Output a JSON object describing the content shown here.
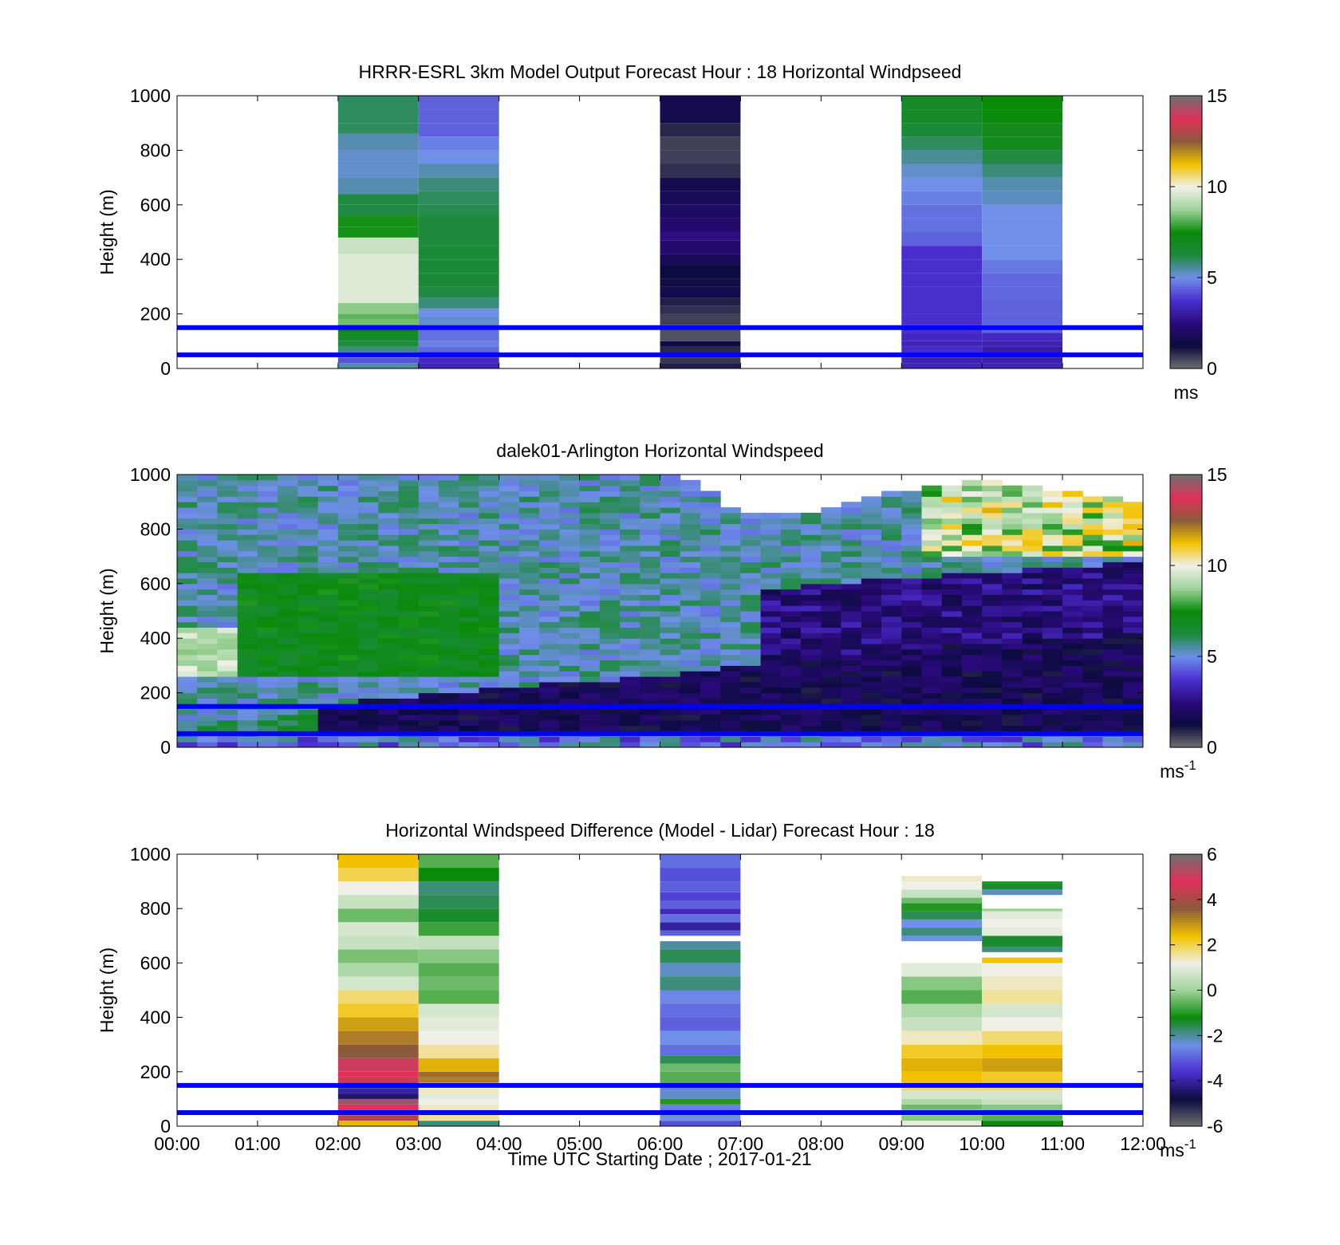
{
  "figure": {
    "xlabel": "Time UTC  Starting Date ; 2017-01-21",
    "x_tick_labels": [
      "00:00",
      "01:00",
      "02:00",
      "03:00",
      "04:00",
      "05:00",
      "06:00",
      "07:00",
      "08:00",
      "09:00",
      "10:00",
      "11:00",
      "12:00"
    ],
    "y_tick_labels": [
      "0",
      "200",
      "400",
      "600",
      "800",
      "1000"
    ],
    "ylabel": "Height (m)",
    "colors": {
      "reference_lines": "#0000ff",
      "windspeed_colormap": [
        "#707070",
        "#0b0b3e",
        "#2a0a7a",
        "#4a2fd0",
        "#6f8fe8",
        "#1d8a3c",
        "#0a8a0a",
        "#9fd39a",
        "#f0f0e8",
        "#f2c200",
        "#8a5a3a",
        "#e0305a",
        "#707070"
      ],
      "difference_colormap": [
        "#707070",
        "#0b0b3e",
        "#4a2fd0",
        "#6f8fe8",
        "#0a8a0a",
        "#9fd39a",
        "#f0f0e8",
        "#f2c200",
        "#8a5a3a",
        "#e0305a",
        "#707070"
      ]
    }
  },
  "chart_data": [
    {
      "type": "heatmap",
      "title": "HRRR-ESRL 3km Model Output   Forecast Hour : 18 Horizontal Windpseed",
      "xlabel": "",
      "ylabel": "Height (m)",
      "xlim": [
        0,
        12
      ],
      "ylim": [
        0,
        1000
      ],
      "colorbar": {
        "range": [
          0,
          15
        ],
        "tick_labels": [
          "0",
          "5",
          "10",
          "15"
        ],
        "unit": "ms",
        "unit_sup": ""
      },
      "reference_heights": [
        50,
        150
      ],
      "columns": [
        {
          "t0": 2,
          "t1": 3,
          "heights": [
            20,
            40,
            60,
            80,
            100,
            130,
            160,
            180,
            200,
            240,
            270,
            300,
            350,
            420,
            480,
            520,
            560,
            600,
            640,
            700,
            760,
            800,
            860,
            900,
            1000
          ],
          "values": [
            5.5,
            4.2,
            5.0,
            5.8,
            6.3,
            6.6,
            7.4,
            8.4,
            8.2,
            8.6,
            9.7,
            9.7,
            9.7,
            9.7,
            9.4,
            7.6,
            7.6,
            6.2,
            6.2,
            5.4,
            5.2,
            5.2,
            5.4,
            6.0,
            6.0
          ]
        },
        {
          "t0": 3,
          "t1": 4,
          "heights": [
            20,
            40,
            60,
            80,
            100,
            130,
            160,
            190,
            220,
            260,
            300,
            350,
            400,
            450,
            500,
            560,
            600,
            650,
            700,
            750,
            800,
            850,
            900,
            950,
            1000
          ],
          "values": [
            3.4,
            3.5,
            3.8,
            4.5,
            4.8,
            4.6,
            4.6,
            5.2,
            5.0,
            5.8,
            6.2,
            6.4,
            6.4,
            6.4,
            6.3,
            6.3,
            6.1,
            6.0,
            5.8,
            5.4,
            5.0,
            4.8,
            4.4,
            4.4,
            4.4
          ]
        },
        {
          "t0": 6,
          "t1": 7,
          "heights": [
            20,
            40,
            60,
            80,
            100,
            130,
            160,
            200,
            230,
            260,
            300,
            330,
            380,
            420,
            470,
            500,
            550,
            600,
            650,
            700,
            750,
            800,
            850,
            900,
            1000
          ],
          "values": [
            1.0,
            0.7,
            0.8,
            0.9,
            1.4,
            0.4,
            0.4,
            0.6,
            0.8,
            1.0,
            1.6,
            1.2,
            1.3,
            1.8,
            2.2,
            2.6,
            2.2,
            2.0,
            1.8,
            1.6,
            0.8,
            0.6,
            0.6,
            0.9,
            1.6
          ]
        },
        {
          "t0": 9,
          "t1": 10,
          "heights": [
            20,
            40,
            60,
            80,
            100,
            130,
            160,
            200,
            250,
            300,
            350,
            400,
            450,
            500,
            550,
            600,
            650,
            700,
            750,
            800,
            850,
            900,
            950,
            1000
          ],
          "values": [
            3.4,
            3.3,
            3.4,
            3.6,
            3.4,
            3.5,
            3.7,
            3.7,
            3.7,
            3.7,
            3.7,
            3.7,
            3.7,
            4.4,
            4.6,
            4.6,
            4.8,
            5.0,
            5.2,
            5.6,
            6.0,
            6.4,
            6.8,
            6.8
          ]
        },
        {
          "t0": 10,
          "t1": 11,
          "heights": [
            20,
            40,
            60,
            80,
            100,
            130,
            160,
            200,
            250,
            300,
            350,
            400,
            450,
            500,
            550,
            600,
            650,
            700,
            750,
            800,
            850,
            900,
            950,
            1000
          ],
          "values": [
            3.4,
            3.2,
            3.0,
            3.1,
            3.3,
            3.5,
            4.4,
            4.4,
            4.4,
            4.5,
            4.5,
            4.7,
            5.0,
            5.0,
            5.0,
            5.0,
            5.3,
            5.4,
            5.8,
            6.2,
            7.0,
            7.0,
            7.5,
            7.5
          ]
        }
      ]
    },
    {
      "type": "heatmap",
      "title": "dalek01-Arlington  Horizontal Windspeed",
      "xlabel": "",
      "ylabel": "Height (m)",
      "xlim": [
        0,
        12
      ],
      "ylim": [
        0,
        1000
      ],
      "colorbar": {
        "range": [
          0,
          15
        ],
        "tick_labels": [
          "0",
          "5",
          "10",
          "15"
        ],
        "unit": "ms",
        "unit_sup": "-1"
      },
      "reference_heights": [
        50,
        150
      ],
      "time_step_hours": 0.25,
      "height_step_m": 20,
      "time_range": [
        0,
        12
      ],
      "max_height_by_hour": {
        "hours": [
          0,
          2,
          4,
          5,
          6,
          6.5,
          7,
          8,
          9,
          10,
          11,
          12
        ],
        "heights": [
          1000,
          1000,
          1000,
          1000,
          1000,
          960,
          860,
          860,
          940,
          980,
          940,
          900
        ]
      },
      "jet_height_by_hour": {
        "hours": [
          0,
          1,
          2,
          3,
          4,
          5,
          6,
          7,
          8,
          9,
          10,
          11,
          12
        ],
        "heights": [
          60,
          60,
          120,
          150,
          180,
          200,
          220,
          260,
          300,
          320,
          340,
          360,
          380
        ]
      }
    },
    {
      "type": "heatmap",
      "title": "Horizontal Windspeed Difference (Model - Lidar) Forecast Hour : 18",
      "xlabel": "Time UTC  Starting Date ; 2017-01-21",
      "ylabel": "Height (m)",
      "xlim": [
        0,
        12
      ],
      "ylim": [
        0,
        1000
      ],
      "colorbar": {
        "range": [
          -6,
          6
        ],
        "tick_labels": [
          "-6",
          "-4",
          "-2",
          "0",
          "2",
          "4",
          "6"
        ],
        "unit": "ms",
        "unit_sup": "-1"
      },
      "reference_heights": [
        50,
        150
      ],
      "columns": [
        {
          "t0": 2,
          "t1": 3,
          "heights": [
            20,
            40,
            60,
            80,
            100,
            120,
            140,
            160,
            180,
            200,
            250,
            300,
            350,
            400,
            450,
            500,
            550,
            600,
            650,
            700,
            750,
            800,
            850,
            900,
            950,
            1000
          ],
          "values": [
            2.5,
            4.2,
            5.2,
            4.8,
            5.5,
            -4.4,
            -4.0,
            -5.6,
            4.5,
            4.8,
            5.0,
            3.6,
            3.2,
            2.8,
            2.2,
            1.8,
            0.8,
            0.2,
            -0.3,
            0.6,
            0.8,
            -0.4,
            0.6,
            1.2,
            2.0,
            2.4
          ]
        },
        {
          "t0": 3,
          "t1": 4,
          "heights": [
            20,
            40,
            60,
            80,
            100,
            120,
            140,
            160,
            180,
            200,
            250,
            300,
            350,
            400,
            450,
            500,
            550,
            600,
            650,
            700,
            750,
            800,
            850,
            900,
            950,
            1000
          ],
          "values": [
            -1.8,
            1.6,
            2.0,
            1.4,
            1.2,
            1.0,
            1.4,
            1.2,
            3.2,
            3.4,
            2.6,
            1.6,
            1.2,
            1.0,
            0.8,
            -0.6,
            -0.4,
            -0.6,
            -0.2,
            0.5,
            -0.8,
            -1.4,
            -1.6,
            -1.8,
            -1.2,
            -0.6
          ]
        },
        {
          "t0": 6,
          "t1": 7,
          "heights": [
            20,
            40,
            60,
            80,
            100,
            130,
            160,
            200,
            230,
            260,
            300,
            350,
            400,
            450,
            500,
            550,
            600,
            650,
            680
          ],
          "values": [
            -3.2,
            -2.4,
            -1.4,
            -2.6,
            -1.0,
            -2.2,
            -2.6,
            -0.6,
            -0.4,
            -1.6,
            -2.8,
            -2.4,
            -3.0,
            -2.8,
            -2.5,
            -1.8,
            -2.2,
            -1.6,
            -2.0
          ]
        },
        {
          "t0": 6,
          "t1": 7,
          "heights": [
            720,
            750,
            780,
            800,
            830,
            860,
            900,
            950,
            1000
          ],
          "values": [
            -3.0,
            -4.0,
            -2.8,
            -3.8,
            -3.0,
            -3.4,
            -3.0,
            -3.2,
            -2.8
          ]
        },
        {
          "t0": 9,
          "t1": 10,
          "heights": [
            20,
            40,
            60,
            80,
            100,
            130,
            160,
            200,
            250,
            300,
            350,
            400,
            450,
            500,
            550,
            600
          ],
          "values": [
            1.0,
            -0.2,
            0.4,
            -0.4,
            0.2,
            0.8,
            1.8,
            2.4,
            2.6,
            2.2,
            1.4,
            0.6,
            0.2,
            -0.6,
            -0.2,
            1.0
          ]
        },
        {
          "t0": 9,
          "t1": 10,
          "heights": [
            700,
            730,
            760,
            790,
            820,
            840,
            870,
            900,
            920
          ],
          "values": [
            -2.4,
            -1.8,
            -2.4,
            -1.6,
            -1.0,
            -0.4,
            0.6,
            1.2,
            1.4
          ]
        },
        {
          "t0": 10,
          "t1": 11,
          "heights": [
            20,
            40,
            60,
            80,
            100,
            130,
            160,
            200,
            250,
            300,
            350,
            400,
            450,
            500,
            550,
            600,
            620
          ],
          "values": [
            -1.2,
            -0.6,
            -0.4,
            -0.2,
            0.6,
            0.8,
            1.8,
            2.2,
            2.8,
            2.4,
            1.8,
            1.2,
            0.8,
            1.6,
            1.4,
            1.2,
            2.4
          ]
        },
        {
          "t0": 10,
          "t1": 11,
          "heights": [
            660,
            700,
            730,
            760,
            790,
            800
          ],
          "values": [
            -1.8,
            -1.4,
            1.0,
            1.2,
            1.0,
            0.0
          ]
        },
        {
          "t0": 10,
          "t1": 11,
          "heights": [
            870,
            890,
            900
          ],
          "values": [
            -2.2,
            -1.4,
            -1.0
          ]
        }
      ]
    }
  ]
}
